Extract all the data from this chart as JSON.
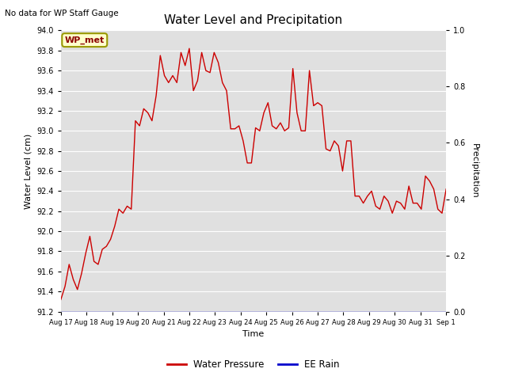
{
  "title": "Water Level and Precipitation",
  "top_left_text": "No data for WP Staff Gauge",
  "ylabel_left": "Water Level (cm)",
  "ylabel_right": "Precipitation",
  "xlabel": "Time",
  "ylim_left": [
    91.2,
    94.0
  ],
  "ylim_right": [
    0.0,
    1.0
  ],
  "yticks_left": [
    91.2,
    91.4,
    91.6,
    91.8,
    92.0,
    92.2,
    92.4,
    92.6,
    92.8,
    93.0,
    93.2,
    93.4,
    93.6,
    93.8,
    94.0
  ],
  "yticks_right": [
    0.0,
    0.2,
    0.4,
    0.6,
    0.8,
    1.0
  ],
  "xtick_labels": [
    "Aug 17",
    "Aug 18",
    "Aug 19",
    "Aug 20",
    "Aug 21",
    "Aug 22",
    "Aug 23",
    "Aug 24",
    "Aug 25",
    "Aug 26",
    "Aug 27",
    "Aug 28",
    "Aug 29",
    "Aug 30",
    "Aug 31",
    "Sep 1"
  ],
  "line_color": "#cc0000",
  "rain_color": "#0000cc",
  "background_color": "#e0e0e0",
  "legend_label_wp": "Water Pressure",
  "legend_label_rain": "EE Rain",
  "annotation_label": "WP_met",
  "water_level": [
    91.32,
    91.45,
    91.67,
    91.52,
    91.42,
    91.58,
    91.78,
    91.95,
    91.7,
    91.67,
    91.82,
    91.85,
    91.92,
    92.05,
    92.22,
    92.18,
    92.25,
    92.22,
    93.1,
    93.05,
    93.22,
    93.18,
    93.1,
    93.35,
    93.75,
    93.55,
    93.48,
    93.55,
    93.48,
    93.78,
    93.65,
    93.82,
    93.4,
    93.5,
    93.78,
    93.6,
    93.58,
    93.78,
    93.68,
    93.48,
    93.4,
    93.02,
    93.02,
    93.05,
    92.9,
    92.68,
    92.68,
    93.03,
    93.0,
    93.18,
    93.28,
    93.05,
    93.02,
    93.08,
    93.0,
    93.03,
    93.62,
    93.18,
    93.0,
    93.0,
    93.6,
    93.25,
    93.28,
    93.25,
    92.82,
    92.8,
    92.9,
    92.85,
    92.6,
    92.9,
    92.9,
    92.35,
    92.35,
    92.28,
    92.35,
    92.4,
    92.25,
    92.22,
    92.35,
    92.3,
    92.18,
    92.3,
    92.28,
    92.22,
    92.45,
    92.28,
    92.28,
    92.22,
    92.55,
    92.5,
    92.42,
    92.22,
    92.18,
    92.42
  ],
  "rain_level": 0.0
}
